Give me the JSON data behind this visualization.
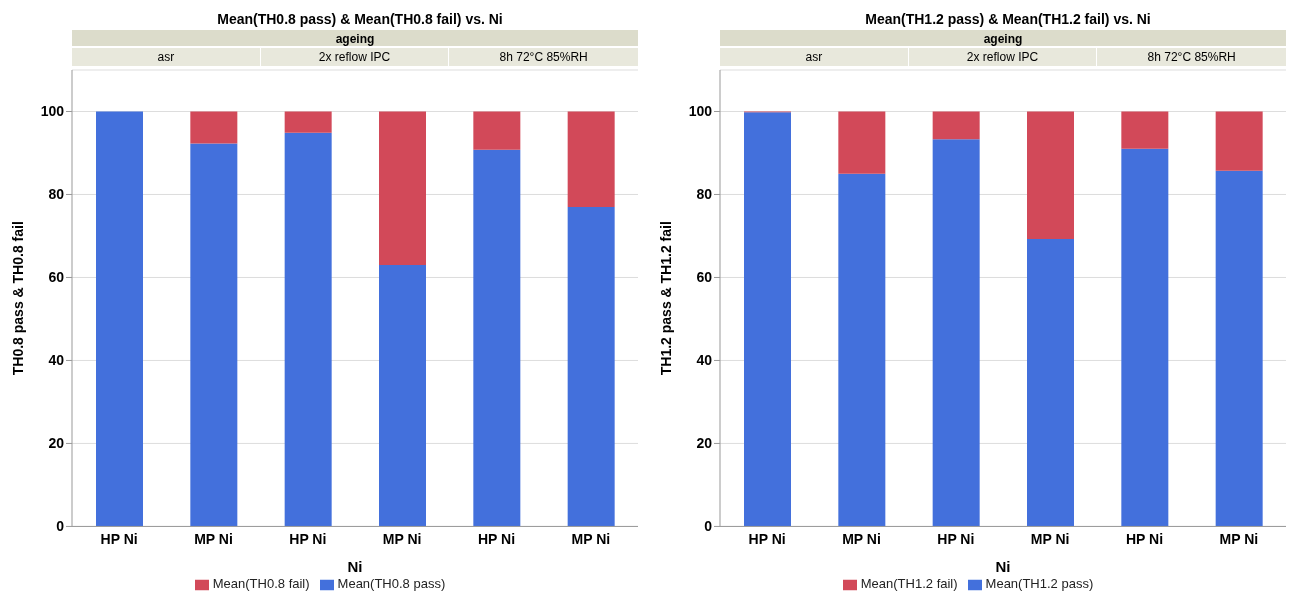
{
  "chart_data": [
    {
      "type": "bar",
      "title": "Mean(TH0.8 pass) & Mean(TH0.8 fail) vs. Ni",
      "xlabel": "Ni",
      "ylabel": "TH0.8 pass & TH0.8 fail",
      "annotations": [
        "ageing",
        "asr",
        "2x reflow IPC",
        "8h 72°C 85%RH"
      ],
      "categories": [
        "HP Ni",
        "MP Ni",
        "HP Ni",
        "MP Ni",
        "HP Ni",
        "MP Ni"
      ],
      "stacked": true,
      "ylim": [
        0,
        110
      ],
      "yticks": [
        0,
        20,
        40,
        60,
        80,
        100
      ],
      "grid": "y",
      "legend": "bottom",
      "series": [
        {
          "name": "Mean(TH0.8 pass)",
          "color": "#4370dc",
          "values": [
            100,
            92.3,
            94.9,
            63,
            90.8,
            77
          ]
        },
        {
          "name": "Mean(TH0.8 fail)",
          "color": "#d24959",
          "values": [
            0,
            7.7,
            5.1,
            37,
            9.2,
            23
          ]
        }
      ]
    },
    {
      "type": "bar",
      "title": "Mean(TH1.2 pass) & Mean(TH1.2 fail) vs. Ni",
      "xlabel": "Ni",
      "ylabel": "TH1.2 pass & TH1.2 fail",
      "annotations": [
        "ageing",
        "asr",
        "2x reflow IPC",
        "8h 72°C 85%RH"
      ],
      "categories": [
        "HP Ni",
        "MP Ni",
        "HP Ni",
        "MP Ni",
        "HP Ni",
        "MP Ni"
      ],
      "stacked": true,
      "ylim": [
        0,
        110
      ],
      "yticks": [
        0,
        20,
        40,
        60,
        80,
        100
      ],
      "grid": "y",
      "legend": "bottom",
      "series": [
        {
          "name": "Mean(TH1.2 pass)",
          "color": "#4370dc",
          "values": [
            99.8,
            85,
            93.3,
            69.3,
            91,
            85.7
          ]
        },
        {
          "name": "Mean(TH1.2 fail)",
          "color": "#d24959",
          "values": [
            0.2,
            15,
            6.7,
            30.7,
            9,
            14.3
          ]
        }
      ]
    }
  ]
}
